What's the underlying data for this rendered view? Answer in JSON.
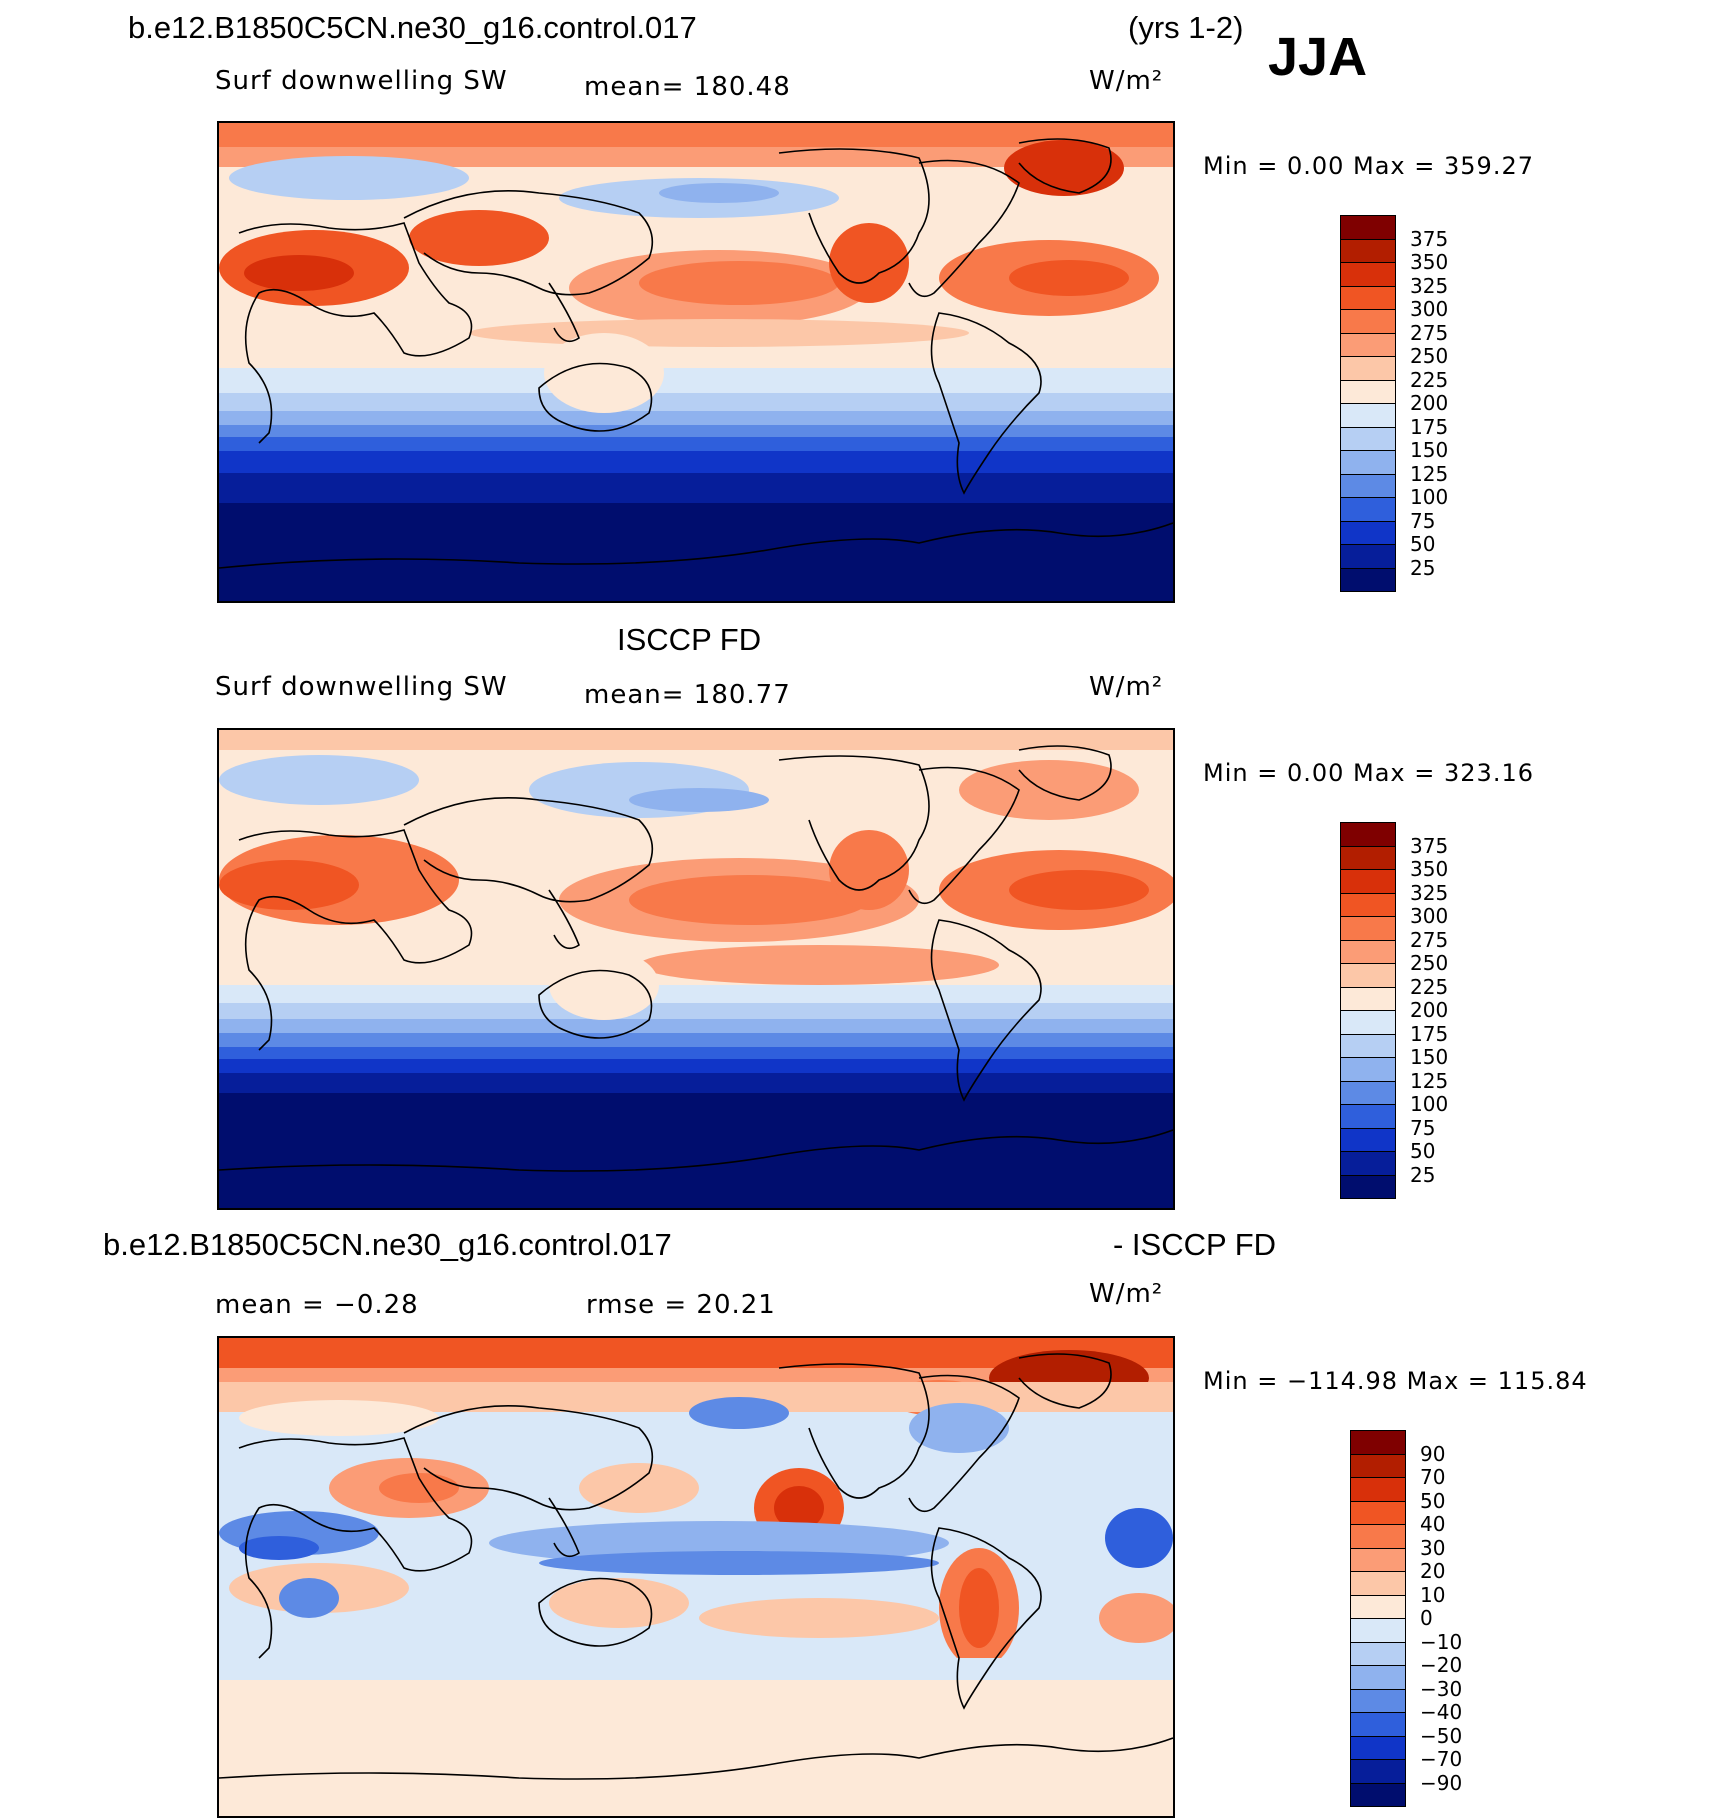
{
  "header": {
    "case_title": "b.e12.B1850C5CN.ne30_g16.control.017",
    "years": "(yrs 1-2)",
    "season": "JJA"
  },
  "panels": [
    {
      "id": "model",
      "title": "",
      "variable": "Surf downwelling SW",
      "mean_label": "mean=  180.48",
      "units": "W/m²",
      "minmax_label": "Min  =     0.00  Max  =  359.27"
    },
    {
      "id": "obs",
      "title": "ISCCP FD",
      "variable": "Surf downwelling SW",
      "mean_label": "mean=  180.77",
      "units": "W/m²",
      "minmax_label": "Min  =     0.00  Max  =  323.16"
    },
    {
      "id": "diff",
      "title_left": "b.e12.B1850C5CN.ne30_g16.control.017",
      "title_right": "- ISCCP FD",
      "mean_label": "mean  =   −0.28",
      "rmse_label": "rmse  =    20.21",
      "units": "W/m²",
      "minmax_label": "Min  = −114.98  Max  =  115.84"
    }
  ],
  "colorbars": {
    "absolute": {
      "labels": [
        "375",
        "350",
        "325",
        "300",
        "275",
        "250",
        "225",
        "200",
        "175",
        "150",
        "125",
        "100",
        "75",
        "50",
        "25"
      ],
      "colors": [
        "#7f0000",
        "#b21e00",
        "#d8300a",
        "#f05523",
        "#f8794a",
        "#fb9c76",
        "#fcc7a8",
        "#fde9d8",
        "#d9e8f8",
        "#b6cff3",
        "#8fb2ee",
        "#5d8ae5",
        "#2f5fdc",
        "#1035c8",
        "#061e9a",
        "#000d6e"
      ]
    },
    "difference": {
      "labels": [
        "90",
        "70",
        "50",
        "40",
        "30",
        "20",
        "10",
        "0",
        "−10",
        "−20",
        "−30",
        "−40",
        "−50",
        "−70",
        "−90"
      ],
      "colors": [
        "#7f0000",
        "#b21e00",
        "#d8300a",
        "#f05523",
        "#f8794a",
        "#fb9c76",
        "#fcc7a8",
        "#fde9d8",
        "#d9e8f8",
        "#b6cff3",
        "#8fb2ee",
        "#5d8ae5",
        "#2f5fdc",
        "#1035c8",
        "#061e9a",
        "#000d6e"
      ]
    }
  }
}
